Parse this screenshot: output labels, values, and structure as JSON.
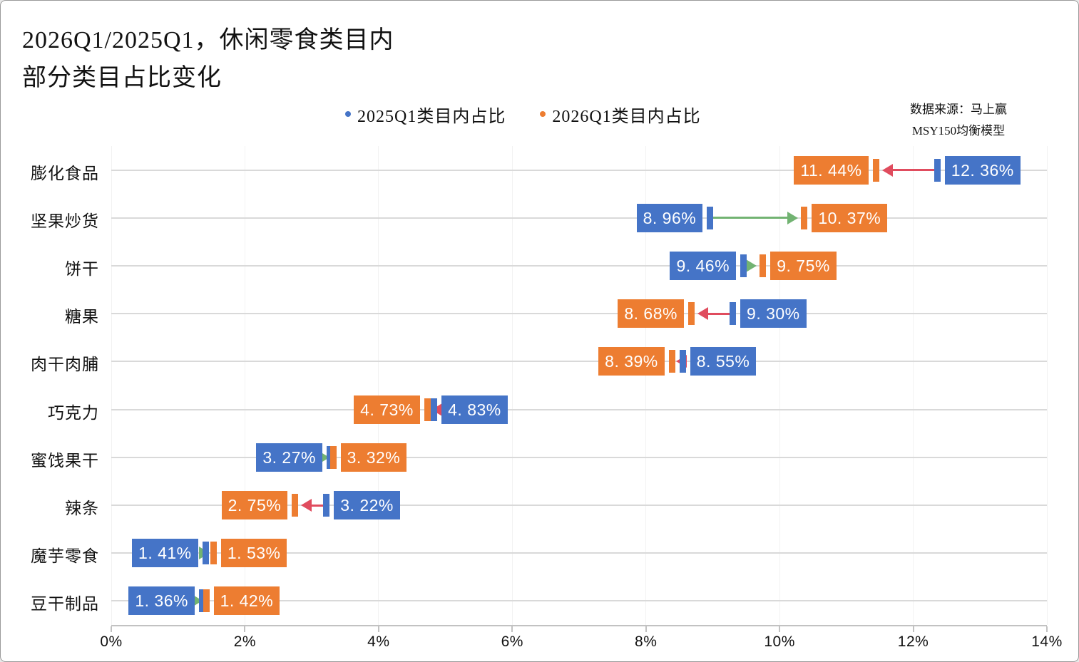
{
  "title": {
    "line1": "2026Q1/2025Q1，休闲零食类目内",
    "line2": "部分类目占比变化"
  },
  "legend": [
    {
      "label": "2025Q1类目内占比",
      "color": "#4574C7"
    },
    {
      "label": "2026Q1类目内占比",
      "color": "#ED7D31"
    }
  ],
  "source": {
    "line1": "数据来源：马上赢",
    "line2": "MSY150均衡模型"
  },
  "colors": {
    "series_2025_blue": "#4574C7",
    "series_2026_orange": "#ED7D31",
    "arrow_increase_green": "#72B372",
    "arrow_decrease_red": "#E04C5E",
    "row_line": "#d9d9d9",
    "axis_line": "#c2c2c2",
    "gridline": "#f2f2f2",
    "label_text": "#ffffff"
  },
  "chart_data": {
    "type": "dumbbell",
    "description": "Arrowed dumbbell chart: change in within-category share from 2025Q1 (blue) to 2026Q1 (orange); green arrow = increase, red arrow = decrease",
    "title": "2026Q1/2025Q1，休闲零食类目内部分类目占比变化",
    "xlabel": "",
    "ylabel": "",
    "xlim": [
      0,
      14
    ],
    "grid": "faint vertical gridlines at each 2%, light horizontal guide line per category row",
    "legend_position": "top-center",
    "categories": [
      "膨化食品",
      "坚果炒货",
      "饼干",
      "糖果",
      "肉干肉脯",
      "巧克力",
      "蜜饯果干",
      "辣条",
      "魔芋零食",
      "豆干制品"
    ],
    "series": [
      {
        "name": "2025Q1类目内占比",
        "color": "#4574C7",
        "values": [
          12.36,
          8.96,
          9.46,
          9.3,
          8.55,
          4.83,
          3.27,
          3.22,
          1.41,
          1.36
        ]
      },
      {
        "name": "2026Q1类目内占比",
        "color": "#ED7D31",
        "values": [
          11.44,
          10.37,
          9.75,
          8.68,
          8.39,
          4.73,
          3.32,
          2.75,
          1.53,
          1.42
        ]
      }
    ],
    "rows": [
      {
        "category": "膨化食品",
        "v2025": 12.36,
        "v2026": 11.44,
        "label2025": "12. 36%",
        "label2026": "11. 44%",
        "direction": "decrease"
      },
      {
        "category": "坚果炒货",
        "v2025": 8.96,
        "v2026": 10.37,
        "label2025": "8. 96%",
        "label2026": "10. 37%",
        "direction": "increase"
      },
      {
        "category": "饼干",
        "v2025": 9.46,
        "v2026": 9.75,
        "label2025": "9. 46%",
        "label2026": "9. 75%",
        "direction": "increase"
      },
      {
        "category": "糖果",
        "v2025": 9.3,
        "v2026": 8.68,
        "label2025": "9. 30%",
        "label2026": "8. 68%",
        "direction": "decrease"
      },
      {
        "category": "肉干肉脯",
        "v2025": 8.55,
        "v2026": 8.39,
        "label2025": "8. 55%",
        "label2026": "8. 39%",
        "direction": "decrease"
      },
      {
        "category": "巧克力",
        "v2025": 4.83,
        "v2026": 4.73,
        "label2025": "4. 83%",
        "label2026": "4. 73%",
        "direction": "decrease"
      },
      {
        "category": "蜜饯果干",
        "v2025": 3.27,
        "v2026": 3.32,
        "label2025": "3. 27%",
        "label2026": "3. 32%",
        "direction": "increase"
      },
      {
        "category": "辣条",
        "v2025": 3.22,
        "v2026": 2.75,
        "label2025": "3. 22%",
        "label2026": "2. 75%",
        "direction": "decrease"
      },
      {
        "category": "魔芋零食",
        "v2025": 1.41,
        "v2026": 1.53,
        "label2025": "1. 41%",
        "label2026": "1. 53%",
        "direction": "increase"
      },
      {
        "category": "豆干制品",
        "v2025": 1.36,
        "v2026": 1.42,
        "label2025": "1. 36%",
        "label2026": "1. 42%",
        "direction": "increase"
      }
    ],
    "x_ticks": [
      {
        "value": 0,
        "label": "0%"
      },
      {
        "value": 2,
        "label": "2%"
      },
      {
        "value": 4,
        "label": "4%"
      },
      {
        "value": 6,
        "label": "6%"
      },
      {
        "value": 8,
        "label": "8%"
      },
      {
        "value": 10,
        "label": "10%"
      },
      {
        "value": 12,
        "label": "12%"
      },
      {
        "value": 14,
        "label": "14%"
      }
    ]
  }
}
